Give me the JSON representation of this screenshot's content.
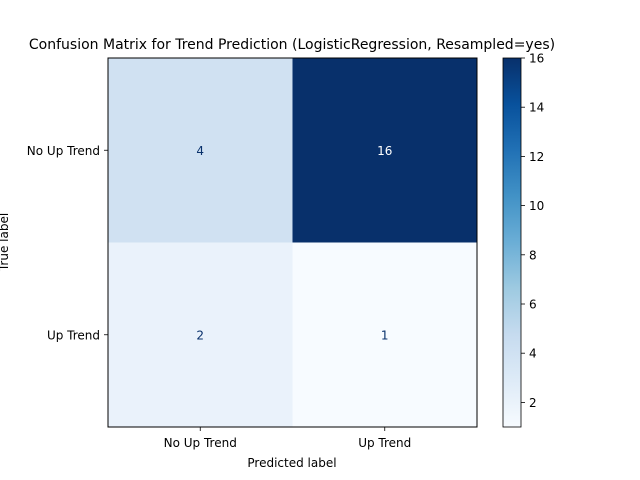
{
  "chart_data": {
    "type": "heatmap",
    "title": "Confusion Matrix for Trend Prediction (LogisticRegression, Resampled=yes)",
    "xlabel": "Predicted label",
    "ylabel": "True label",
    "x_categories": [
      "No Up Trend",
      "Up Trend"
    ],
    "y_categories": [
      "No Up Trend",
      "Up Trend"
    ],
    "values": [
      [
        4,
        16
      ],
      [
        2,
        1
      ]
    ],
    "colormap": "Blues",
    "colorbar": {
      "range": [
        1,
        16
      ],
      "ticks": [
        2,
        4,
        6,
        8,
        10,
        12,
        14,
        16
      ]
    },
    "grid": false
  }
}
